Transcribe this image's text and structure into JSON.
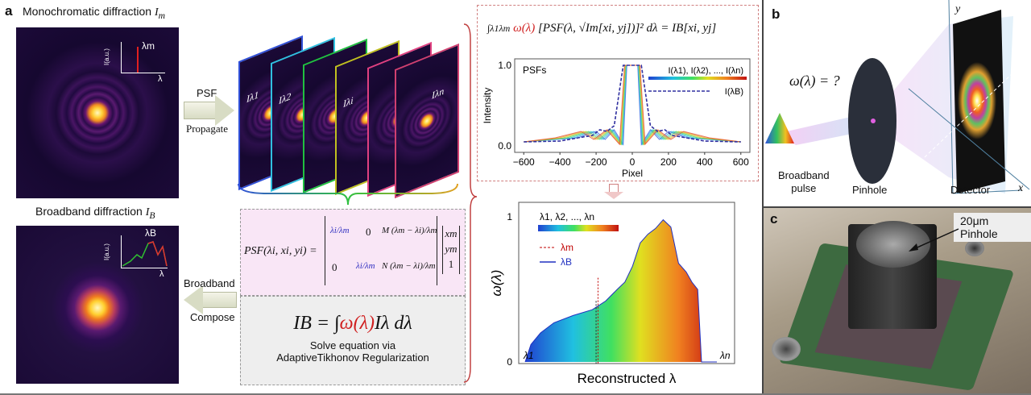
{
  "panel_a": {
    "label": "a",
    "mono_title": "Monochromatic diffraction",
    "mono_symbol": "I",
    "mono_sub": "m",
    "mono_inset_ylabel": "I(a.u.)",
    "mono_inset_peak": "λm",
    "mono_inset_xlabel": "λ",
    "broad_title": "Broadband diffraction",
    "broad_symbol": "I",
    "broad_sub": "B",
    "broad_inset_ylabel": "I(a.u.)",
    "broad_inset_peak": "λB",
    "broad_inset_xlabel": "λ",
    "arrow_psf_top": "PSF",
    "arrow_psf_bottom": "Propagate",
    "arrow_compose_top": "Broadband",
    "arrow_compose_bottom": "Compose",
    "frames": [
      {
        "label": "Iλ1",
        "color": "#3050d8"
      },
      {
        "label": "Iλ2",
        "color": "#30c0e0"
      },
      {
        "label": "Iλi",
        "color": "#20c040"
      },
      {
        "label": "Iλn",
        "color": "#e04080"
      }
    ],
    "frame_extra_colors": [
      "#c0c020",
      "#d04070"
    ],
    "psf_equation_lhs": "PSF(λi, xi, yi) =",
    "matrix": [
      [
        "λi/λm",
        "0",
        "M (λm − λi)/λm"
      ],
      [
        "0",
        "λi/λm",
        "N (λm − λi)/λm"
      ]
    ],
    "vector": [
      "xm",
      "ym",
      "1"
    ],
    "ib_equation": {
      "lhs": "IB = ∫",
      "omega": "ω(λ)",
      "rhs": "Iλ dλ"
    },
    "solve_text_1": "Solve equation via",
    "solve_text_2": "AdaptiveTikhonov Regularization",
    "integral_equation": {
      "prefix": "∫λ1λm",
      "omega": "ω(λ)",
      "body": "[PSF(λ, √Im[xi, yj])]² dλ = IB[xi, yj]"
    }
  },
  "chart_data": [
    {
      "type": "line",
      "title": "PSFs",
      "xlabel": "Pixel",
      "ylabel": "Intensity",
      "xlim": [
        -650,
        650
      ],
      "ylim": [
        0,
        1
      ],
      "xticks": [
        "−600",
        "−400",
        "−200",
        "0",
        "200",
        "400",
        "600"
      ],
      "yticks": [
        "0.0",
        "1.0"
      ],
      "legend": [
        {
          "name": "I(λ1), I(λ2), ..., I(λn)",
          "style": "rainbow"
        },
        {
          "name": "I(λB)",
          "style": "dashed",
          "color": "#3030a0"
        }
      ],
      "legend_position": "top-right",
      "series_B": {
        "x": [
          -600,
          -400,
          -300,
          -220,
          -180,
          -140,
          -100,
          -50,
          0,
          50,
          100,
          140,
          180,
          220,
          300,
          400,
          600
        ],
        "y": [
          0.05,
          0.06,
          0.1,
          0.13,
          0.2,
          0.18,
          0.25,
          1.0,
          1.0,
          1.0,
          0.25,
          0.18,
          0.2,
          0.13,
          0.1,
          0.06,
          0.05
        ]
      }
    },
    {
      "type": "area",
      "xlabel": "Reconstructed λ",
      "ylabel": "ω(λ)",
      "ylim": [
        0,
        1
      ],
      "yticks": [
        "0",
        "1"
      ],
      "xticks": [
        "λ1",
        "λn"
      ],
      "legend": [
        {
          "name": "λ1, λ2, ..., λn",
          "style": "rainbow"
        },
        {
          "name": "λm",
          "style": "dashed",
          "color": "#c00000"
        },
        {
          "name": "λB",
          "style": "solid",
          "color": "#2030c0"
        }
      ],
      "legend_position": "top-left",
      "x": [
        0,
        0.03,
        0.08,
        0.15,
        0.25,
        0.35,
        0.42,
        0.48,
        0.52,
        0.56,
        0.6,
        0.64,
        0.68,
        0.72,
        0.76,
        0.8,
        0.84,
        0.87,
        0.9,
        0.92,
        1.0
      ],
      "y": [
        0,
        0.12,
        0.2,
        0.27,
        0.32,
        0.36,
        0.42,
        0.5,
        0.55,
        0.66,
        0.82,
        0.88,
        0.92,
        0.98,
        0.93,
        0.68,
        0.62,
        0.55,
        0.5,
        0,
        0
      ],
      "lambda_m": 0.38,
      "lambda_B": 0.37
    }
  ],
  "panel_b": {
    "label": "b",
    "question": "ω(λ) = ?",
    "source_1": "Broadband",
    "source_2": "pulse",
    "pinhole": "Pinhole",
    "detector": "Detector",
    "axis_x": "x",
    "axis_y": "y"
  },
  "panel_c": {
    "label": "c",
    "callout": "20μm Pinhole"
  }
}
